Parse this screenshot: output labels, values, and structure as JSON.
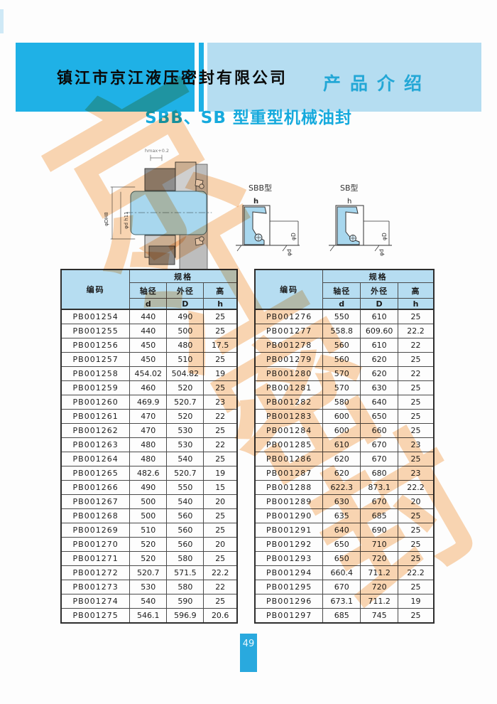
{
  "header": {
    "company": "镇江市京江液压密封有限公司",
    "section": "产品介绍"
  },
  "title": "SBB、SB 型重型机械油封",
  "diagram": {
    "main_note": "hmax+0.2",
    "dim_outer": "φDH8",
    "dim_inner": "φd h11",
    "left_type": "SBB型",
    "right_type": "SB型",
    "h_label": "h",
    "outer_dia": "φD",
    "inner_dia": "φd"
  },
  "table": {
    "code": "编码",
    "spec": "规格",
    "shaft_dia": "轴径",
    "outer_dia": "外径",
    "height": "高",
    "sym_d": "d",
    "sym_D": "D",
    "sym_h": "h"
  },
  "left_rows": [
    [
      "PB001254",
      "440",
      "490",
      "25"
    ],
    [
      "PB001255",
      "440",
      "500",
      "25"
    ],
    [
      "PB001256",
      "450",
      "480",
      "17.5"
    ],
    [
      "PB001257",
      "450",
      "510",
      "25"
    ],
    [
      "PB001258",
      "454.02",
      "504.82",
      "19"
    ],
    [
      "PB001259",
      "460",
      "520",
      "25"
    ],
    [
      "PB001260",
      "469.9",
      "520.7",
      "23"
    ],
    [
      "PB001261",
      "470",
      "520",
      "22"
    ],
    [
      "PB001262",
      "470",
      "530",
      "25"
    ],
    [
      "PB001263",
      "480",
      "530",
      "22"
    ],
    [
      "PB001264",
      "480",
      "540",
      "25"
    ],
    [
      "PB001265",
      "482.6",
      "520.7",
      "19"
    ],
    [
      "PB001266",
      "490",
      "550",
      "15"
    ],
    [
      "PB001267",
      "500",
      "540",
      "20"
    ],
    [
      "PB001268",
      "500",
      "560",
      "25"
    ],
    [
      "PB001269",
      "510",
      "560",
      "25"
    ],
    [
      "PB001270",
      "520",
      "560",
      "20"
    ],
    [
      "PB001271",
      "520",
      "580",
      "25"
    ],
    [
      "PB001272",
      "520.7",
      "571.5",
      "22.2"
    ],
    [
      "PB001273",
      "530",
      "580",
      "22"
    ],
    [
      "PB001274",
      "540",
      "590",
      "25"
    ],
    [
      "PB001275",
      "546.1",
      "596.9",
      "20.6"
    ]
  ],
  "right_rows": [
    [
      "PB001276",
      "550",
      "610",
      "25"
    ],
    [
      "PB001277",
      "558.8",
      "609.60",
      "22.2"
    ],
    [
      "PB001278",
      "560",
      "610",
      "22"
    ],
    [
      "PB001279",
      "560",
      "620",
      "25"
    ],
    [
      "PB001280",
      "570",
      "620",
      "22"
    ],
    [
      "PB001281",
      "570",
      "630",
      "25"
    ],
    [
      "PB001282",
      "580",
      "640",
      "25"
    ],
    [
      "PB001283",
      "600",
      "650",
      "25"
    ],
    [
      "PB001284",
      "600",
      "660",
      "25"
    ],
    [
      "PB001285",
      "610",
      "670",
      "23"
    ],
    [
      "PB001286",
      "620",
      "670",
      "25"
    ],
    [
      "PB001287",
      "620",
      "680",
      "23"
    ],
    [
      "PB001288",
      "622.3",
      "873.1",
      "22.2"
    ],
    [
      "PB001289",
      "630",
      "670",
      "20"
    ],
    [
      "PB001290",
      "635",
      "685",
      "25"
    ],
    [
      "PB001291",
      "640",
      "690",
      "25"
    ],
    [
      "PB001292",
      "650",
      "710",
      "25"
    ],
    [
      "PB001293",
      "650",
      "720",
      "25"
    ],
    [
      "PB001294",
      "660.4",
      "711.2",
      "22.2"
    ],
    [
      "PB001295",
      "670",
      "720",
      "25"
    ],
    [
      "PB001296",
      "673.1",
      "711.2",
      "19"
    ],
    [
      "PB001297",
      "685",
      "745",
      "25"
    ]
  ],
  "watermark": [
    "京",
    "江",
    "密",
    "封"
  ],
  "footer": {
    "page": "49"
  },
  "colors": {
    "accent_blue": "#1fb1e6",
    "light_blue": "#b5ddf1",
    "table_header": "#b6ddf1",
    "title_blue": "#16aadd",
    "watermark_orange": "#f39438",
    "badge_blue": "#29a9de",
    "shaft_fill": "#a8d7ee",
    "housing_gray": "#8e8e8e"
  }
}
